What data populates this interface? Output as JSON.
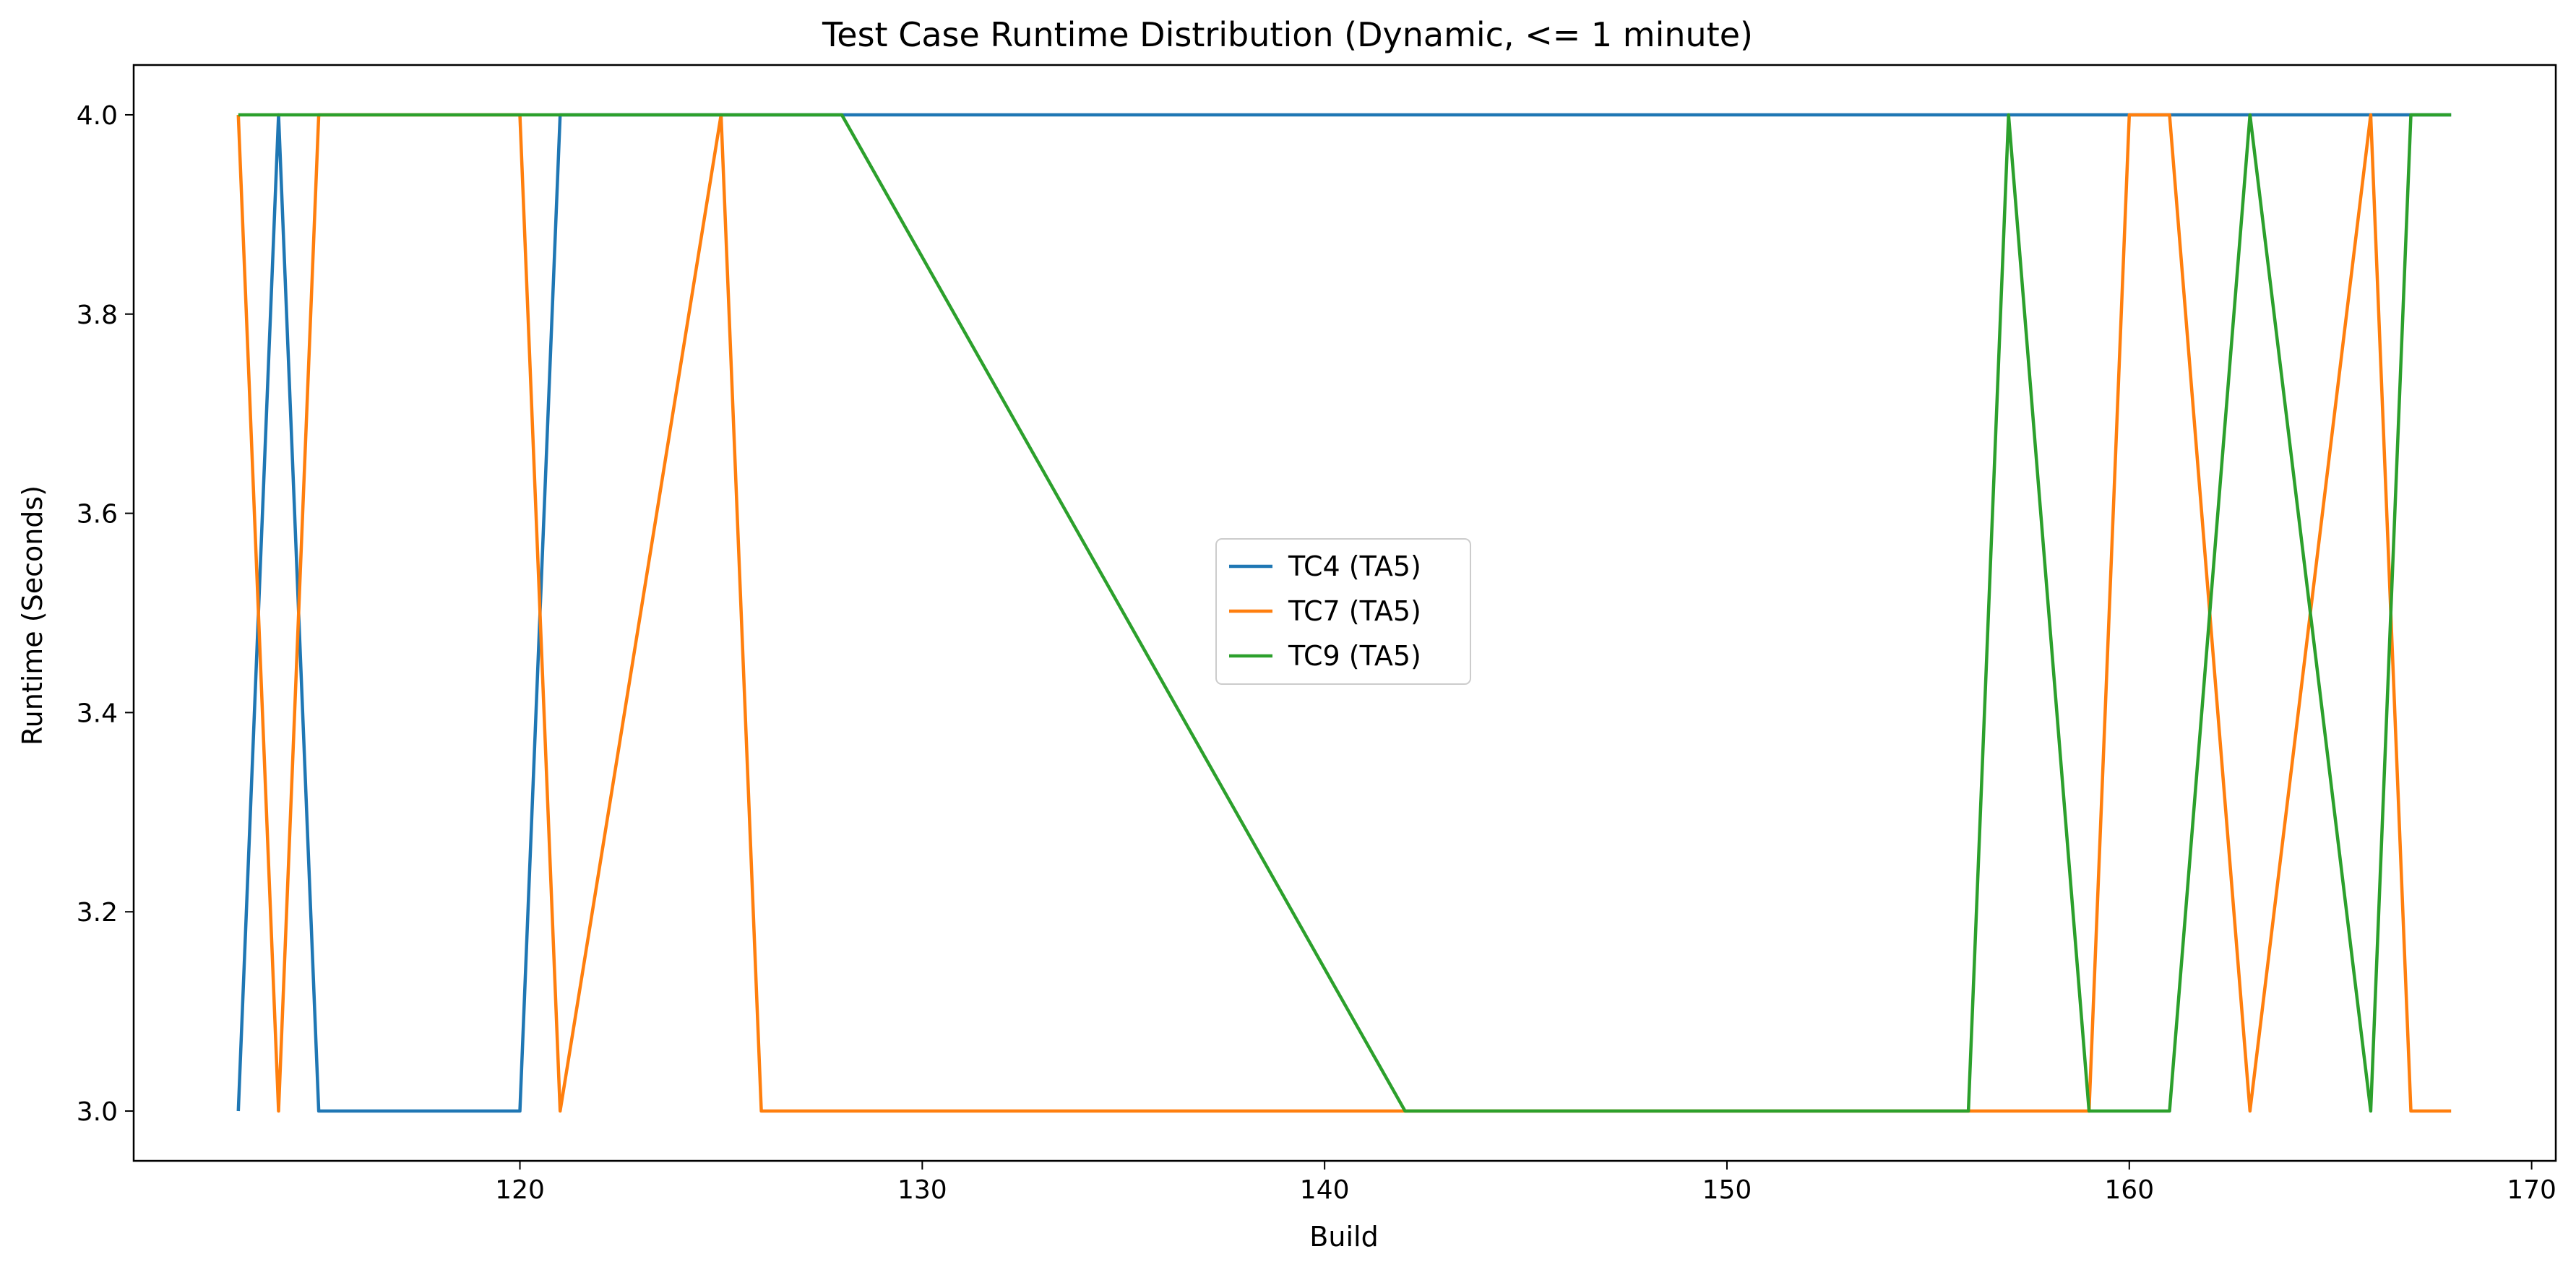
{
  "chart_data": {
    "type": "line",
    "title": "Test Case Runtime Distribution (Dynamic, <= 1 minute)",
    "xlabel": "Build",
    "ylabel": "Runtime (Seconds)",
    "xlim": [
      110.4,
      170.6
    ],
    "ylim": [
      2.95,
      4.05
    ],
    "xticks": [
      120,
      130,
      140,
      150,
      160,
      170
    ],
    "yticks": [
      3.0,
      3.2,
      3.4,
      3.6,
      3.8,
      4.0
    ],
    "xtick_labels": [
      "120",
      "130",
      "140",
      "150",
      "160",
      "170"
    ],
    "ytick_labels": [
      "3.0",
      "3.2",
      "3.4",
      "3.6",
      "3.8",
      "4.0"
    ],
    "grid": false,
    "legend_position": "center",
    "series": [
      {
        "name": "TC4 (TA5)",
        "color": "#1f77b4",
        "points": [
          [
            113,
            3
          ],
          [
            114,
            4
          ],
          [
            115,
            3
          ],
          [
            120,
            3
          ],
          [
            121,
            4
          ],
          [
            160,
            4
          ],
          [
            161,
            4
          ],
          [
            166,
            4
          ],
          [
            167,
            4
          ],
          [
            168,
            4
          ]
        ]
      },
      {
        "name": "TC7 (TA5)",
        "color": "#ff7f0e",
        "points": [
          [
            113,
            4
          ],
          [
            114,
            3
          ],
          [
            115,
            4
          ],
          [
            120,
            4
          ],
          [
            121,
            3
          ],
          [
            125,
            4
          ],
          [
            126,
            3
          ],
          [
            142,
            3
          ],
          [
            156,
            3
          ],
          [
            159,
            3
          ],
          [
            160,
            4
          ],
          [
            161,
            4
          ],
          [
            163,
            3
          ],
          [
            166,
            4
          ],
          [
            167,
            3
          ],
          [
            168,
            3
          ]
        ]
      },
      {
        "name": "TC9 (TA5)",
        "color": "#2ca02c",
        "points": [
          [
            113,
            4
          ],
          [
            128,
            4
          ],
          [
            142,
            3
          ],
          [
            156,
            3
          ],
          [
            157,
            4
          ],
          [
            159,
            3
          ],
          [
            161,
            3
          ],
          [
            163,
            4
          ],
          [
            166,
            3
          ],
          [
            167,
            4
          ],
          [
            168,
            4
          ]
        ]
      }
    ]
  }
}
